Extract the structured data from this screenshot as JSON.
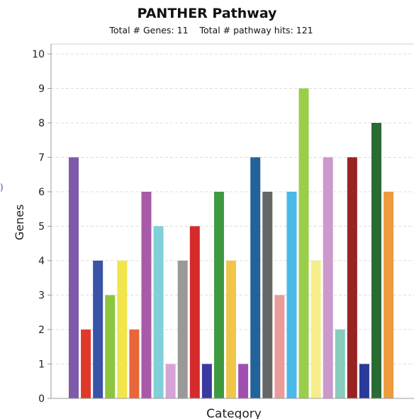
{
  "chart_data": {
    "type": "bar",
    "title": "PANTHER Pathway",
    "subtitle": "Total # Genes: 11    Total # pathway hits: 121",
    "xlabel": "Category",
    "ylabel": "Genes",
    "ylim": [
      0,
      10
    ],
    "yticks": [
      0,
      1,
      2,
      3,
      4,
      5,
      6,
      7,
      8,
      9,
      10
    ],
    "grid": true,
    "values": [
      7,
      2,
      4,
      3,
      4,
      2,
      6,
      5,
      1,
      4,
      5,
      1,
      6,
      4,
      1,
      7,
      6,
      3,
      6,
      9,
      4,
      7,
      2,
      7,
      1,
      8,
      6
    ],
    "colors": [
      "#7f5aa8",
      "#e0392b",
      "#3a52a8",
      "#8cc63f",
      "#f0e54a",
      "#e8663a",
      "#a85aa8",
      "#7fd0d8",
      "#d7a3d5",
      "#999999",
      "#d62b2b",
      "#3a3aa0",
      "#3f9a3f",
      "#f0c64a",
      "#a050b0",
      "#23629a",
      "#666666",
      "#ec9b9b",
      "#4ab8e8",
      "#9acd4a",
      "#f5ee8a",
      "#cc99cc",
      "#88ccbb",
      "#992222",
      "#2a3a9a",
      "#2a6a33",
      "#ee9a3f"
    ]
  },
  "edge_mark": ")"
}
